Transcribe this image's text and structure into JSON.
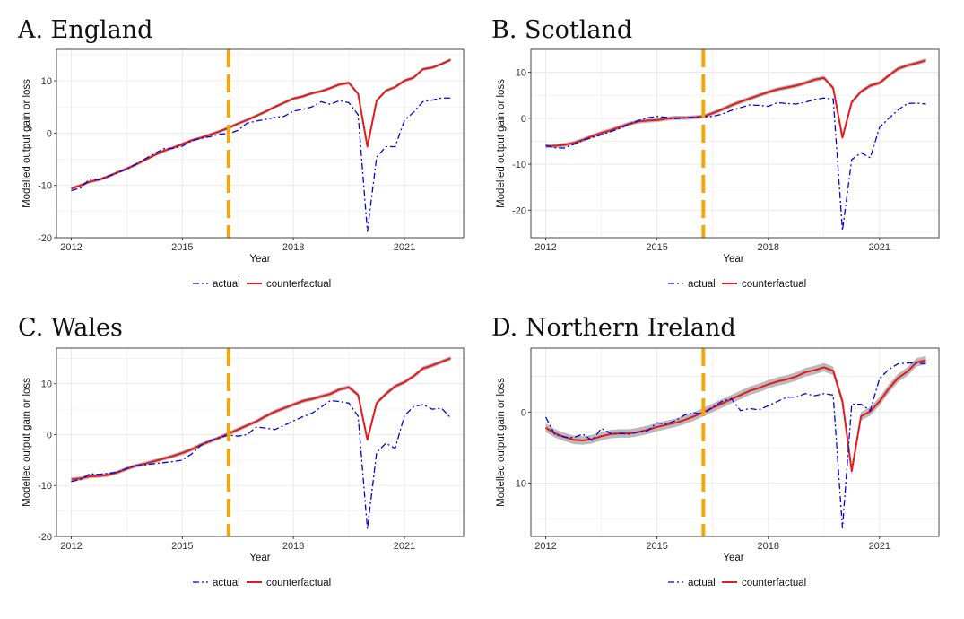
{
  "figure": {
    "colors": {
      "actual": "#0000ee",
      "counterfactual": "#e31a1c",
      "band": "#b3b3b3",
      "vline": "#f4a50c",
      "grid": "#ebebeb",
      "panel_border": "#333333"
    }
  },
  "chart_data": [
    {
      "type": "line",
      "title": "A. England",
      "xlabel": "Year",
      "ylabel": "Modelled output gain or loss",
      "xlim": [
        2011.6,
        2022.6
      ],
      "ylim": [
        -20,
        16
      ],
      "xticks": [
        2012,
        2015,
        2018,
        2021
      ],
      "xtick_labels": [
        "2012",
        "2015",
        "2018",
        "2021"
      ],
      "yticks": [
        -20,
        -10,
        0,
        10
      ],
      "ytick_labels": [
        "-20",
        "-10",
        "0",
        "10"
      ],
      "vline_x": 2016.25,
      "grid": true,
      "legend_position": "bottom",
      "band_halfwidth": 0.3,
      "x": [
        2012.0,
        2012.25,
        2012.5,
        2012.75,
        2013.0,
        2013.25,
        2013.5,
        2013.75,
        2014.0,
        2014.25,
        2014.5,
        2014.75,
        2015.0,
        2015.25,
        2015.5,
        2015.75,
        2016.0,
        2016.25,
        2016.5,
        2016.75,
        2017.0,
        2017.25,
        2017.5,
        2017.75,
        2018.0,
        2018.25,
        2018.5,
        2018.75,
        2019.0,
        2019.25,
        2019.5,
        2019.75,
        2020.0,
        2020.25,
        2020.5,
        2020.75,
        2021.0,
        2021.25,
        2021.5,
        2021.75,
        2022.0,
        2022.25
      ],
      "series": [
        {
          "name": "actual",
          "values": [
            -11.0,
            -10.5,
            -8.8,
            -8.9,
            -8.2,
            -7.6,
            -6.9,
            -5.9,
            -4.9,
            -3.9,
            -3.0,
            -2.9,
            -2.5,
            -1.5,
            -1.0,
            -0.7,
            -0.2,
            -0.1,
            0.5,
            1.9,
            2.3,
            2.6,
            3.0,
            3.2,
            4.2,
            4.5,
            5.0,
            6.0,
            5.5,
            6.2,
            5.8,
            3.5,
            -18.8,
            -4.6,
            -2.6,
            -2.6,
            2.4,
            4.0,
            6.0,
            6.3,
            6.7,
            6.7
          ]
        },
        {
          "name": "counterfactual",
          "values": [
            -10.6,
            -10.0,
            -9.3,
            -8.9,
            -8.3,
            -7.5,
            -6.8,
            -6.0,
            -5.1,
            -4.2,
            -3.4,
            -2.8,
            -2.1,
            -1.4,
            -0.9,
            -0.3,
            0.3,
            1.0,
            1.8,
            2.5,
            3.3,
            4.1,
            5.0,
            5.8,
            6.6,
            7.0,
            7.6,
            8.0,
            8.6,
            9.3,
            9.6,
            7.5,
            -2.6,
            6.2,
            8.1,
            8.8,
            10.0,
            10.6,
            12.2,
            12.5,
            13.2,
            14.0
          ]
        }
      ]
    },
    {
      "type": "line",
      "title": "B. Scotland",
      "xlabel": "Year",
      "ylabel": "Modelled output gain or loss",
      "xlim": [
        2011.6,
        2022.6
      ],
      "ylim": [
        -26,
        15
      ],
      "xticks": [
        2012,
        2015,
        2018,
        2021
      ],
      "xtick_labels": [
        "2012",
        "2015",
        "2018",
        "2021"
      ],
      "yticks": [
        -20,
        -10,
        0,
        10
      ],
      "ytick_labels": [
        "-20",
        "-10",
        "0",
        "10"
      ],
      "vline_x": 2016.25,
      "grid": true,
      "legend_position": "bottom",
      "band_halfwidth": 0.45,
      "x": [
        2012.0,
        2012.25,
        2012.5,
        2012.75,
        2013.0,
        2013.25,
        2013.5,
        2013.75,
        2014.0,
        2014.25,
        2014.5,
        2014.75,
        2015.0,
        2015.25,
        2015.5,
        2015.75,
        2016.0,
        2016.25,
        2016.5,
        2016.75,
        2017.0,
        2017.25,
        2017.5,
        2017.75,
        2018.0,
        2018.25,
        2018.5,
        2018.75,
        2019.0,
        2019.25,
        2019.5,
        2019.75,
        2020.0,
        2020.25,
        2020.5,
        2020.75,
        2021.0,
        2021.25,
        2021.5,
        2021.75,
        2022.0,
        2022.25
      ],
      "series": [
        {
          "name": "actual",
          "values": [
            -5.9,
            -6.4,
            -6.5,
            -5.7,
            -4.8,
            -4.2,
            -3.6,
            -2.9,
            -2.2,
            -1.3,
            -0.5,
            0.1,
            0.4,
            0.2,
            -0.1,
            0.1,
            0.2,
            0.3,
            0.4,
            0.9,
            1.7,
            2.3,
            2.9,
            2.8,
            2.6,
            3.4,
            3.2,
            3.1,
            3.5,
            4.1,
            4.4,
            4.2,
            -24.4,
            -9.0,
            -7.5,
            -8.6,
            -2.0,
            0.0,
            1.8,
            3.2,
            3.3,
            3.1
          ]
        },
        {
          "name": "counterfactual",
          "values": [
            -6.1,
            -6.0,
            -5.8,
            -5.4,
            -4.7,
            -3.9,
            -3.2,
            -2.6,
            -1.9,
            -1.2,
            -0.7,
            -0.5,
            -0.4,
            -0.1,
            0.1,
            0.1,
            0.2,
            0.4,
            1.1,
            1.9,
            2.8,
            3.6,
            4.3,
            5.0,
            5.7,
            6.3,
            6.7,
            7.1,
            7.7,
            8.4,
            8.8,
            6.6,
            -4.2,
            3.5,
            5.8,
            7.1,
            7.7,
            9.3,
            10.8,
            11.5,
            12.0,
            12.6
          ]
        }
      ]
    },
    {
      "type": "line",
      "title": "C. Wales",
      "xlabel": "Year",
      "ylabel": "Modelled output gain or loss",
      "xlim": [
        2011.6,
        2022.6
      ],
      "ylim": [
        -20,
        17
      ],
      "xticks": [
        2012,
        2015,
        2018,
        2021
      ],
      "xtick_labels": [
        "2012",
        "2015",
        "2018",
        "2021"
      ],
      "yticks": [
        -20,
        -10,
        0,
        10
      ],
      "ytick_labels": [
        "-20",
        "-10",
        "0",
        "10"
      ],
      "vline_x": 2016.25,
      "grid": true,
      "legend_position": "bottom",
      "band_halfwidth": 0.4,
      "x": [
        2012.0,
        2012.25,
        2012.5,
        2012.75,
        2013.0,
        2013.25,
        2013.5,
        2013.75,
        2014.0,
        2014.25,
        2014.5,
        2014.75,
        2015.0,
        2015.25,
        2015.5,
        2015.75,
        2016.0,
        2016.25,
        2016.5,
        2016.75,
        2017.0,
        2017.25,
        2017.5,
        2017.75,
        2018.0,
        2018.25,
        2018.5,
        2018.75,
        2019.0,
        2019.25,
        2019.5,
        2019.75,
        2020.0,
        2020.25,
        2020.5,
        2020.75,
        2021.0,
        2021.25,
        2021.5,
        2021.75,
        2022.0,
        2022.25
      ],
      "series": [
        {
          "name": "actual",
          "values": [
            -9.2,
            -8.8,
            -7.7,
            -7.8,
            -7.6,
            -7.4,
            -6.6,
            -6.1,
            -5.9,
            -5.7,
            -5.5,
            -5.3,
            -5.0,
            -3.8,
            -2.1,
            -1.2,
            -0.6,
            -0.1,
            -0.3,
            0.0,
            1.5,
            1.3,
            1.0,
            1.8,
            2.7,
            3.5,
            4.2,
            5.4,
            6.7,
            6.5,
            6.2,
            3.6,
            -18.5,
            -3.5,
            -1.7,
            -2.7,
            3.7,
            5.5,
            5.9,
            5.0,
            5.2,
            3.3
          ]
        },
        {
          "name": "counterfactual",
          "values": [
            -8.8,
            -8.6,
            -8.2,
            -8.1,
            -7.9,
            -7.4,
            -6.7,
            -6.1,
            -5.7,
            -5.2,
            -4.7,
            -4.2,
            -3.6,
            -2.9,
            -2.0,
            -1.3,
            -0.6,
            0.2,
            1.0,
            1.8,
            2.6,
            3.6,
            4.5,
            5.2,
            5.9,
            6.6,
            7.0,
            7.5,
            8.0,
            8.9,
            9.3,
            7.8,
            -1.0,
            6.2,
            8.0,
            9.5,
            10.3,
            11.5,
            13.0,
            13.6,
            14.3,
            15.0
          ]
        }
      ]
    },
    {
      "type": "line",
      "title": "D. Northern Ireland",
      "xlabel": "Year",
      "ylabel": "Modelled output gain or loss",
      "xlim": [
        2011.6,
        2022.6
      ],
      "ylim": [
        -17.5,
        9
      ],
      "xticks": [
        2012,
        2015,
        2018,
        2021
      ],
      "xtick_labels": [
        "2012",
        "2015",
        "2018",
        "2021"
      ],
      "yticks": [
        -10,
        0
      ],
      "ytick_labels": [
        "-10",
        "0"
      ],
      "vline_x": 2016.25,
      "grid": true,
      "legend_position": "bottom",
      "band_halfwidth": 0.6,
      "x": [
        2012.0,
        2012.25,
        2012.5,
        2012.75,
        2013.0,
        2013.25,
        2013.5,
        2013.75,
        2014.0,
        2014.25,
        2014.5,
        2014.75,
        2015.0,
        2015.25,
        2015.5,
        2015.75,
        2016.0,
        2016.25,
        2016.5,
        2016.75,
        2017.0,
        2017.25,
        2017.5,
        2017.75,
        2018.0,
        2018.25,
        2018.5,
        2018.75,
        2019.0,
        2019.25,
        2019.5,
        2019.75,
        2020.0,
        2020.25,
        2020.5,
        2020.75,
        2021.0,
        2021.25,
        2021.5,
        2021.75,
        2022.0,
        2022.25
      ],
      "series": [
        {
          "name": "actual",
          "values": [
            -0.7,
            -3.2,
            -3.5,
            -3.6,
            -3.1,
            -4.0,
            -2.3,
            -3.0,
            -3.0,
            -3.1,
            -2.8,
            -2.6,
            -1.5,
            -1.7,
            -1.2,
            -0.4,
            -0.1,
            -0.3,
            0.7,
            1.5,
            1.9,
            0.2,
            0.5,
            0.3,
            0.9,
            1.5,
            2.1,
            2.1,
            2.6,
            2.3,
            2.6,
            2.4,
            -16.3,
            1.1,
            1.1,
            0.2,
            4.7,
            6.0,
            6.8,
            6.9,
            6.9,
            6.8
          ]
        },
        {
          "name": "counterfactual",
          "values": [
            -2.2,
            -3.0,
            -3.5,
            -3.9,
            -4.0,
            -3.8,
            -3.4,
            -3.1,
            -3.0,
            -3.0,
            -2.8,
            -2.5,
            -2.1,
            -1.8,
            -1.5,
            -1.1,
            -0.6,
            0.0,
            0.6,
            1.2,
            1.8,
            2.4,
            3.0,
            3.4,
            3.9,
            4.3,
            4.6,
            5.0,
            5.6,
            5.9,
            6.3,
            5.8,
            1.5,
            -8.3,
            -0.6,
            0.1,
            1.5,
            3.3,
            4.8,
            5.7,
            7.0,
            7.3
          ]
        }
      ]
    }
  ]
}
